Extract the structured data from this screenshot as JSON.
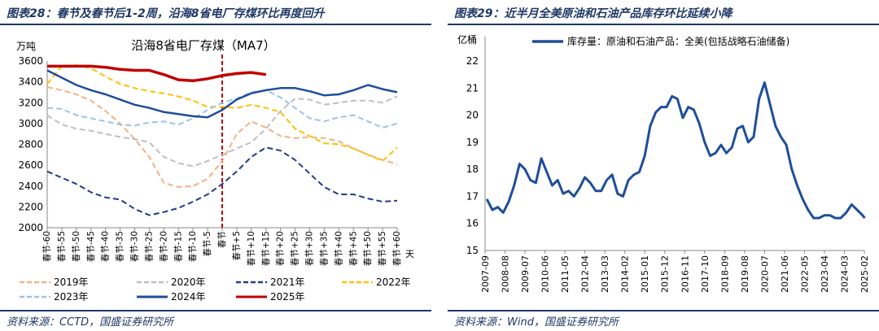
{
  "left_panel": {
    "title": "图表28：春节及春节后1-2周，沿海8省电厂存煤环比再度回升",
    "source": "资料来源：CCTD，国盛证券研究所"
  },
  "right_panel": {
    "title": "图表29：近半月全美原油和石油产品库存环比延续小降",
    "source": "资料来源：Wind，国盛证券研究所"
  },
  "chart_data": [
    {
      "type": "line",
      "title": "沿海8省电厂存煤（MA7）",
      "ylabel": "万吨",
      "xlabel": "天",
      "ylim": [
        2000,
        3600
      ],
      "yticks": [
        2000,
        2200,
        2400,
        2600,
        2800,
        3000,
        3200,
        3400,
        3600
      ],
      "x": [
        -60,
        -55,
        -50,
        -45,
        -40,
        -35,
        -30,
        -25,
        -20,
        -15,
        -10,
        -5,
        0,
        5,
        10,
        15,
        20,
        25,
        30,
        35,
        40,
        45,
        50,
        55,
        60
      ],
      "xtick_labels": [
        "春节-60",
        "春节-55",
        "春节-50",
        "春节-45",
        "春节-40",
        "春节-35",
        "春节-30",
        "春节-25",
        "春节-20",
        "春节-15",
        "春节-10",
        "春节-5",
        "春节",
        "春节+5",
        "春节+10",
        "春节+15",
        "春节+20",
        "春节+25",
        "春节+30",
        "春节+35",
        "春节+40",
        "春节+45",
        "春节+50",
        "春节+55",
        "春节+60"
      ],
      "marker_x": 0,
      "series": [
        {
          "name": "2019年",
          "color": "#f4b183",
          "dash": "dash",
          "values": [
            3350,
            3320,
            3280,
            3220,
            3120,
            3000,
            2850,
            2680,
            2430,
            2390,
            2400,
            2470,
            2640,
            2900,
            3020,
            2960,
            2880,
            2860,
            2870,
            2860,
            2830,
            2760,
            2700,
            2650,
            2610
          ]
        },
        {
          "name": "2020年",
          "color": "#bfbfbf",
          "dash": "dash",
          "values": [
            3080,
            2990,
            2950,
            2930,
            2900,
            2870,
            2850,
            2820,
            2680,
            2620,
            2590,
            2640,
            2700,
            2760,
            2820,
            2950,
            3120,
            3240,
            3230,
            3180,
            3200,
            3220,
            3220,
            3200,
            3260
          ]
        },
        {
          "name": "2021年",
          "color": "#1f3c88",
          "dash": "dash",
          "values": [
            2540,
            2480,
            2420,
            2340,
            2290,
            2270,
            2180,
            2120,
            2150,
            2190,
            2250,
            2320,
            2420,
            2540,
            2680,
            2770,
            2740,
            2650,
            2520,
            2390,
            2320,
            2320,
            2280,
            2250,
            2260
          ]
        },
        {
          "name": "2022年",
          "color": "#ffc000",
          "dash": "dash",
          "values": [
            3380,
            3550,
            3560,
            3530,
            3450,
            3380,
            3340,
            3310,
            3290,
            3260,
            3220,
            3160,
            3160,
            3150,
            3180,
            3150,
            3110,
            2950,
            2880,
            2810,
            2800,
            2760,
            2700,
            2640,
            2770
          ]
        },
        {
          "name": "2023年",
          "color": "#9dc3e6",
          "dash": "dash",
          "values": [
            3150,
            3140,
            3080,
            3050,
            3020,
            2990,
            2980,
            3010,
            3020,
            2990,
            3050,
            3130,
            3200,
            3240,
            3300,
            3320,
            3250,
            3150,
            3050,
            3020,
            3060,
            3080,
            3020,
            2960,
            3000
          ]
        },
        {
          "name": "2024年",
          "color": "#1f4e99",
          "dash": "solid",
          "values": [
            3510,
            3440,
            3370,
            3320,
            3280,
            3230,
            3180,
            3150,
            3110,
            3090,
            3070,
            3060,
            3130,
            3230,
            3290,
            3320,
            3340,
            3340,
            3310,
            3270,
            3280,
            3320,
            3370,
            3330,
            3300
          ]
        },
        {
          "name": "2025年",
          "color": "#c00000",
          "dash": "solid",
          "values": [
            3550,
            3550,
            3550,
            3550,
            3540,
            3520,
            3510,
            3510,
            3470,
            3420,
            3410,
            3430,
            3460,
            3480,
            3490,
            3470,
            null,
            null,
            null,
            null,
            null,
            null,
            null,
            null,
            null
          ]
        }
      ]
    },
    {
      "type": "line",
      "ylabel": "亿桶",
      "ylim": [
        15,
        22
      ],
      "yticks": [
        15,
        16,
        17,
        18,
        19,
        20,
        21,
        22
      ],
      "xtick_labels": [
        "2007-09",
        "2008-08",
        "2009-07",
        "2010-06",
        "2011-05",
        "2012-04",
        "2013-03",
        "2014-02",
        "2015-01",
        "2015-12",
        "2016-11",
        "2017-10",
        "2018-09",
        "2019-08",
        "2020-07",
        "2021-06",
        "2022-05",
        "2023-04",
        "2024-03",
        "2025-02"
      ],
      "series": [
        {
          "name": "库存量：原油和石油产品：全美(包括战略石油储备)",
          "color": "#1f4e99",
          "x": [
            2007.75,
            2008.0,
            2008.25,
            2008.5,
            2008.75,
            2009.0,
            2009.25,
            2009.5,
            2009.75,
            2010.0,
            2010.25,
            2010.5,
            2010.75,
            2011.0,
            2011.25,
            2011.5,
            2011.75,
            2012.0,
            2012.25,
            2012.5,
            2012.75,
            2013.0,
            2013.25,
            2013.5,
            2013.75,
            2014.0,
            2014.25,
            2014.5,
            2014.75,
            2015.0,
            2015.25,
            2015.5,
            2015.75,
            2016.0,
            2016.25,
            2016.5,
            2016.75,
            2017.0,
            2017.25,
            2017.5,
            2017.75,
            2018.0,
            2018.25,
            2018.5,
            2018.75,
            2019.0,
            2019.25,
            2019.5,
            2019.75,
            2020.0,
            2020.25,
            2020.5,
            2020.75,
            2021.0,
            2021.25,
            2021.5,
            2021.75,
            2022.0,
            2022.25,
            2022.5,
            2022.75,
            2023.0,
            2023.25,
            2023.5,
            2023.75,
            2024.0,
            2024.25,
            2024.5,
            2024.75,
            2025.0,
            2025.1
          ],
          "values": [
            16.9,
            16.5,
            16.6,
            16.4,
            16.8,
            17.4,
            18.2,
            18.0,
            17.6,
            17.5,
            18.4,
            17.9,
            17.4,
            17.6,
            17.1,
            17.2,
            17.0,
            17.3,
            17.7,
            17.5,
            17.2,
            17.2,
            17.6,
            17.8,
            17.1,
            17.0,
            17.6,
            17.8,
            17.9,
            18.5,
            19.6,
            20.1,
            20.3,
            20.3,
            20.7,
            20.6,
            19.9,
            20.3,
            20.2,
            19.7,
            19.0,
            18.5,
            18.6,
            18.9,
            18.6,
            18.8,
            19.5,
            19.6,
            19.0,
            19.2,
            20.6,
            21.2,
            20.4,
            19.6,
            19.2,
            18.9,
            18.0,
            17.4,
            16.9,
            16.5,
            16.2,
            16.2,
            16.3,
            16.3,
            16.2,
            16.2,
            16.4,
            16.7,
            16.5,
            16.3,
            16.2
          ]
        }
      ]
    }
  ]
}
